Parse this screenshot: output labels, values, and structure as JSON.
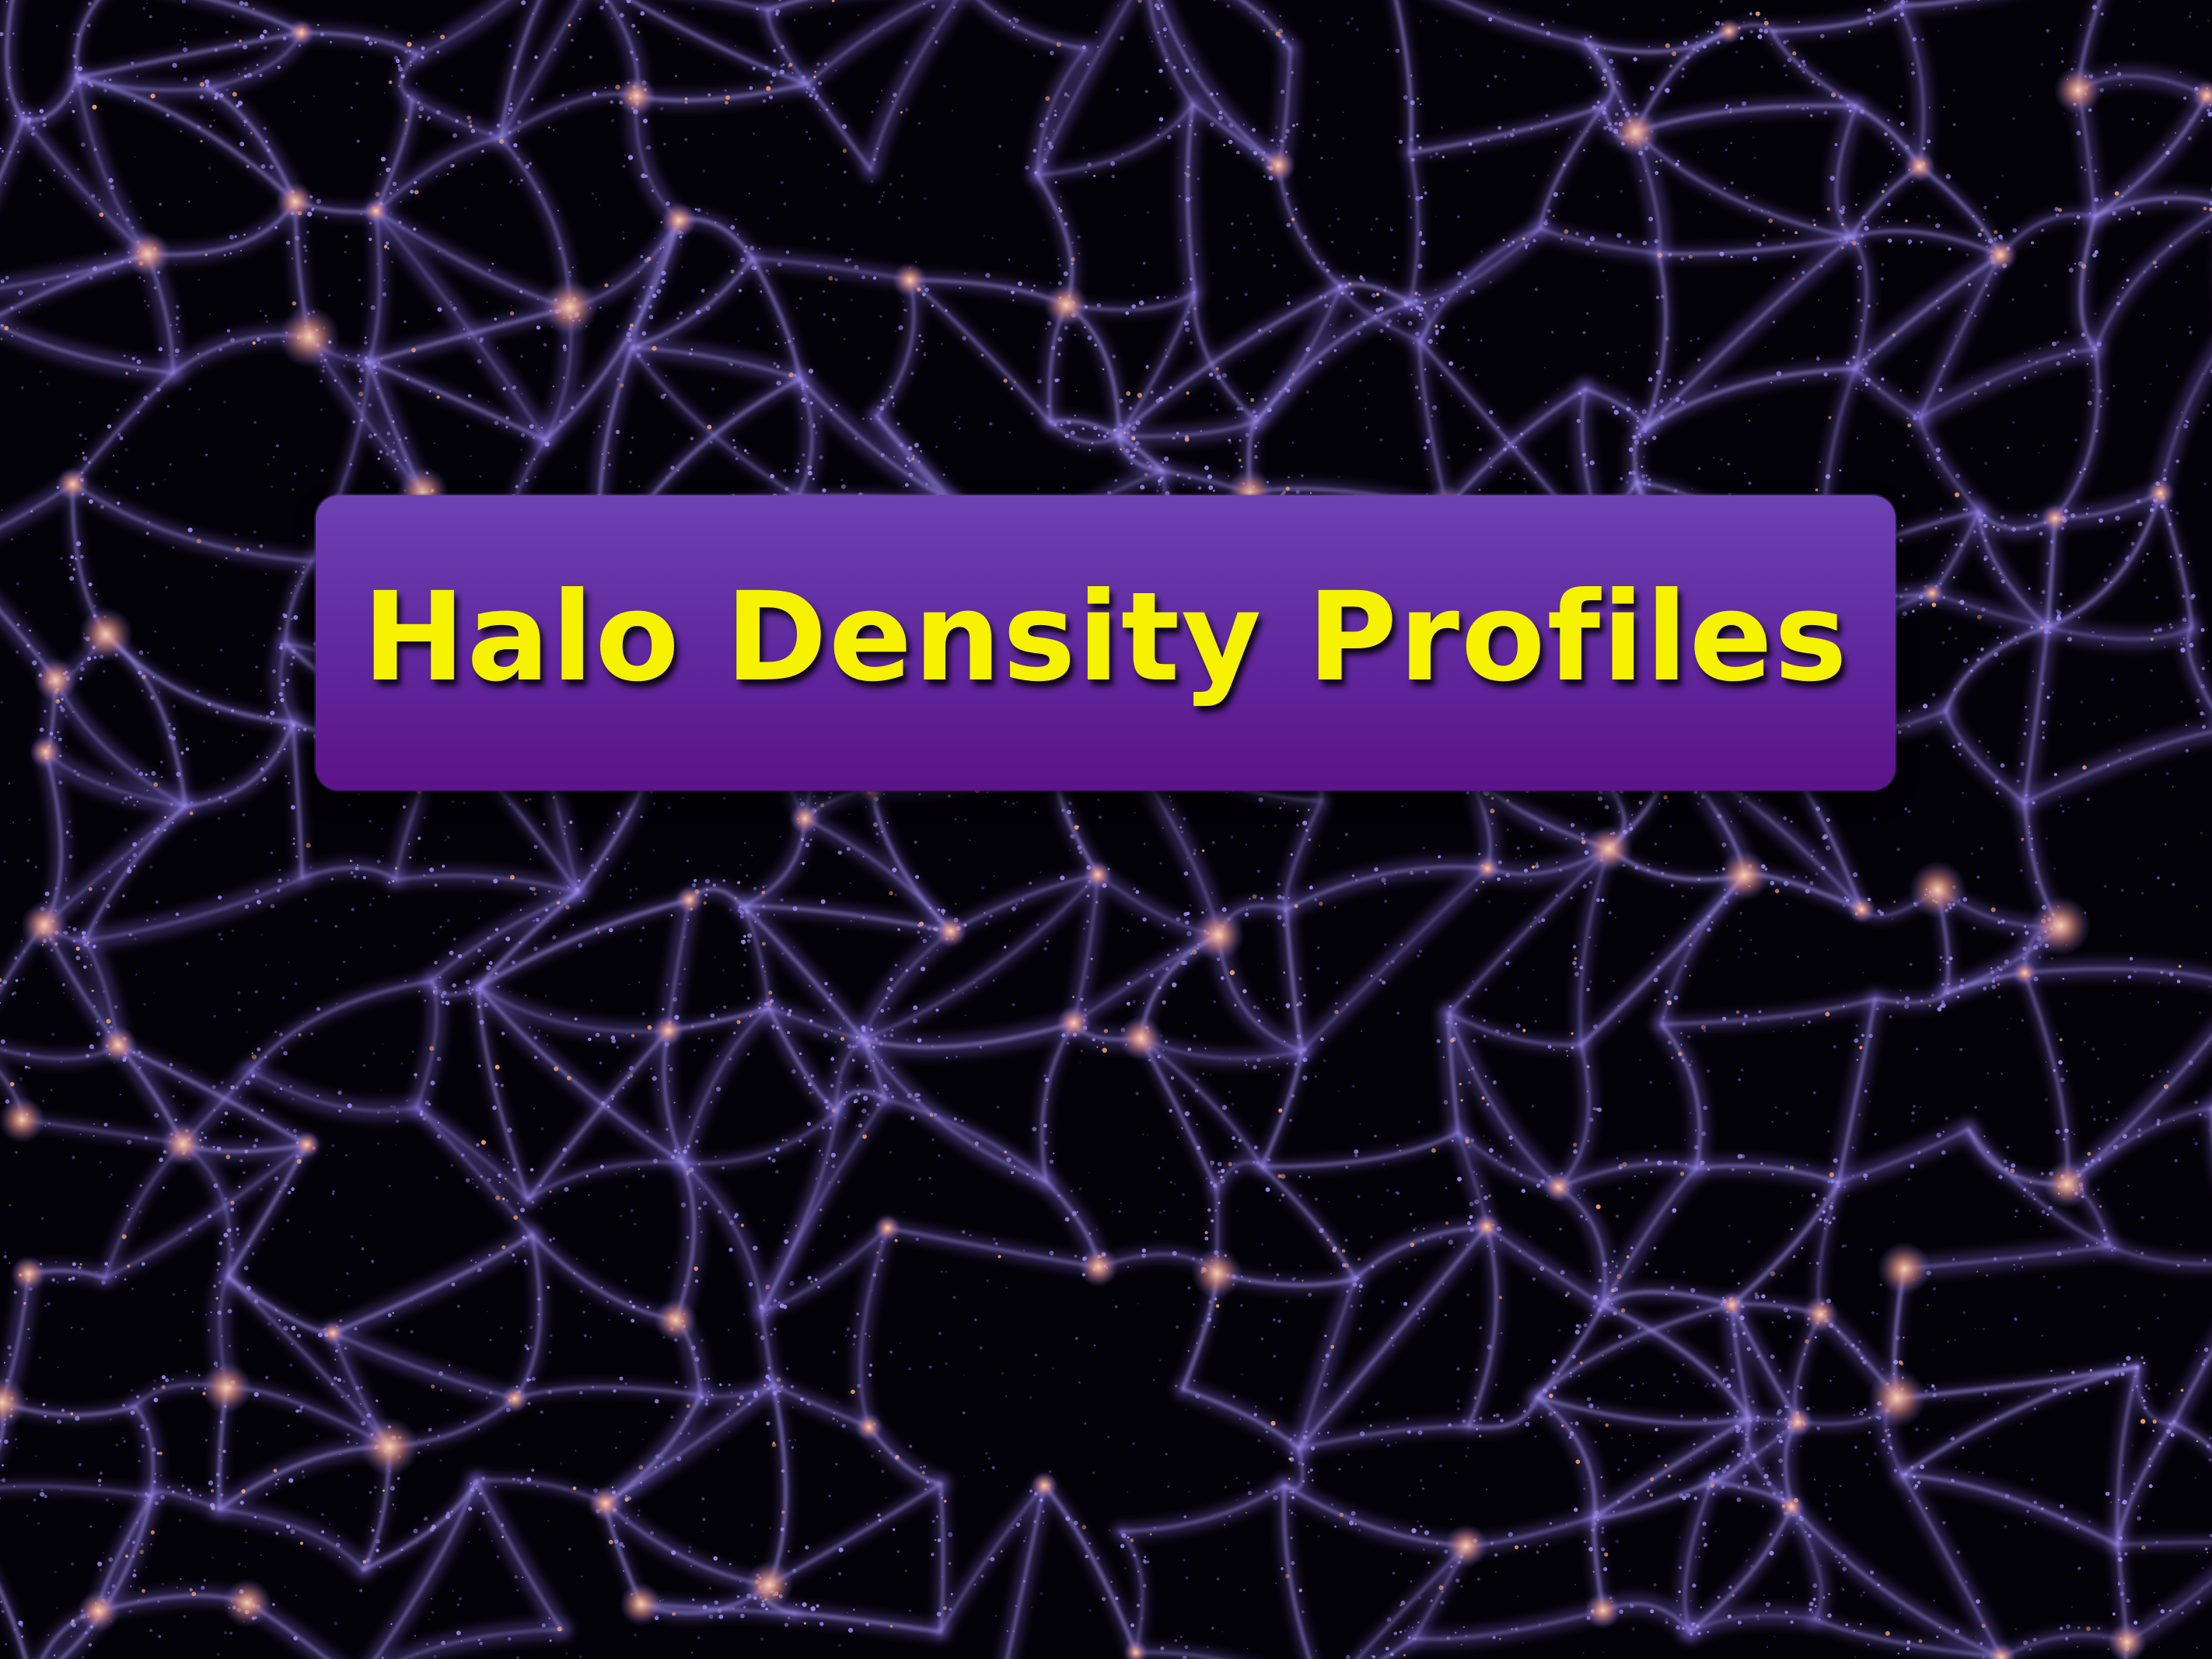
{
  "slide": {
    "title": "Halo Density Profiles",
    "title_color": "#f6f200",
    "box_color_top": "#6c42b2",
    "box_color_bottom": "#5b1389",
    "background_description_icon": "cosmic-web-image",
    "web_color": "#7a66d8",
    "node_color": "#f2a070"
  }
}
